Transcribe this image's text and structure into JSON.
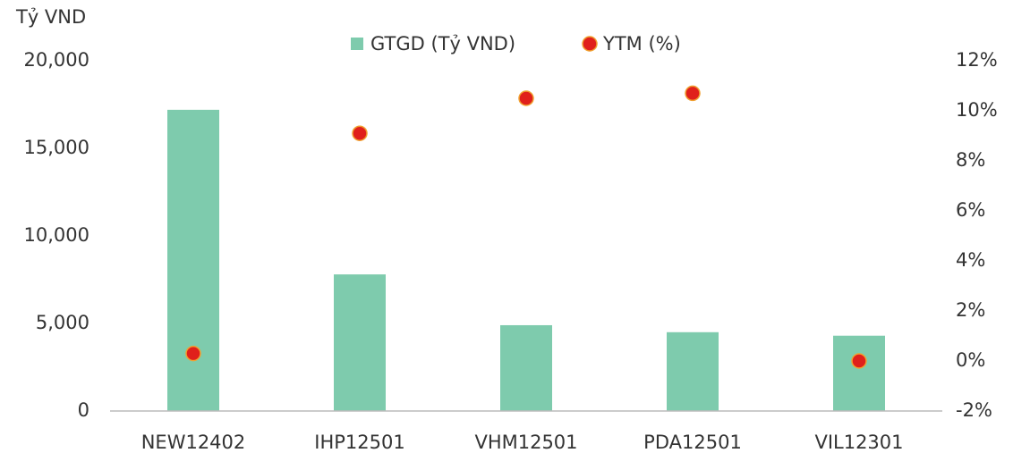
{
  "chart_data": {
    "type": "bar",
    "y_axis_label": "Tỷ VND",
    "categories": [
      "NEW12402",
      "IHP12501",
      "VHM12501",
      "PDA12501",
      "VIL12301"
    ],
    "series": [
      {
        "name": "GTGD (Tỷ VND)",
        "color": "#7ecbad",
        "type": "bar",
        "values": [
          17200,
          7800,
          4900,
          4500,
          4300
        ]
      },
      {
        "name": "YTM (%)",
        "color": "#e0201b",
        "type": "scatter",
        "axis": "y2",
        "values": [
          0.3,
          9.1,
          10.5,
          10.7,
          0
        ]
      }
    ],
    "ylim": [
      0,
      20000
    ],
    "yticks": [
      0,
      {
        "value": 5000,
        "label": "5,000"
      },
      {
        "value": 10000,
        "label": "10,000"
      },
      {
        "value": 15000,
        "label": "15,000"
      },
      {
        "value": 20000,
        "label": "20,000"
      }
    ],
    "y2lim": [
      -2,
      12
    ],
    "y2ticks": [
      {
        "value": -2,
        "label": "-2%"
      },
      {
        "value": 0,
        "label": "0%"
      },
      {
        "value": 2,
        "label": "2%"
      },
      {
        "value": 4,
        "label": "4%"
      },
      {
        "value": 6,
        "label": "6%"
      },
      {
        "value": 8,
        "label": "8%"
      },
      {
        "value": 10,
        "label": "10%"
      },
      {
        "value": 12,
        "label": "12%"
      }
    ],
    "legend": "top"
  }
}
